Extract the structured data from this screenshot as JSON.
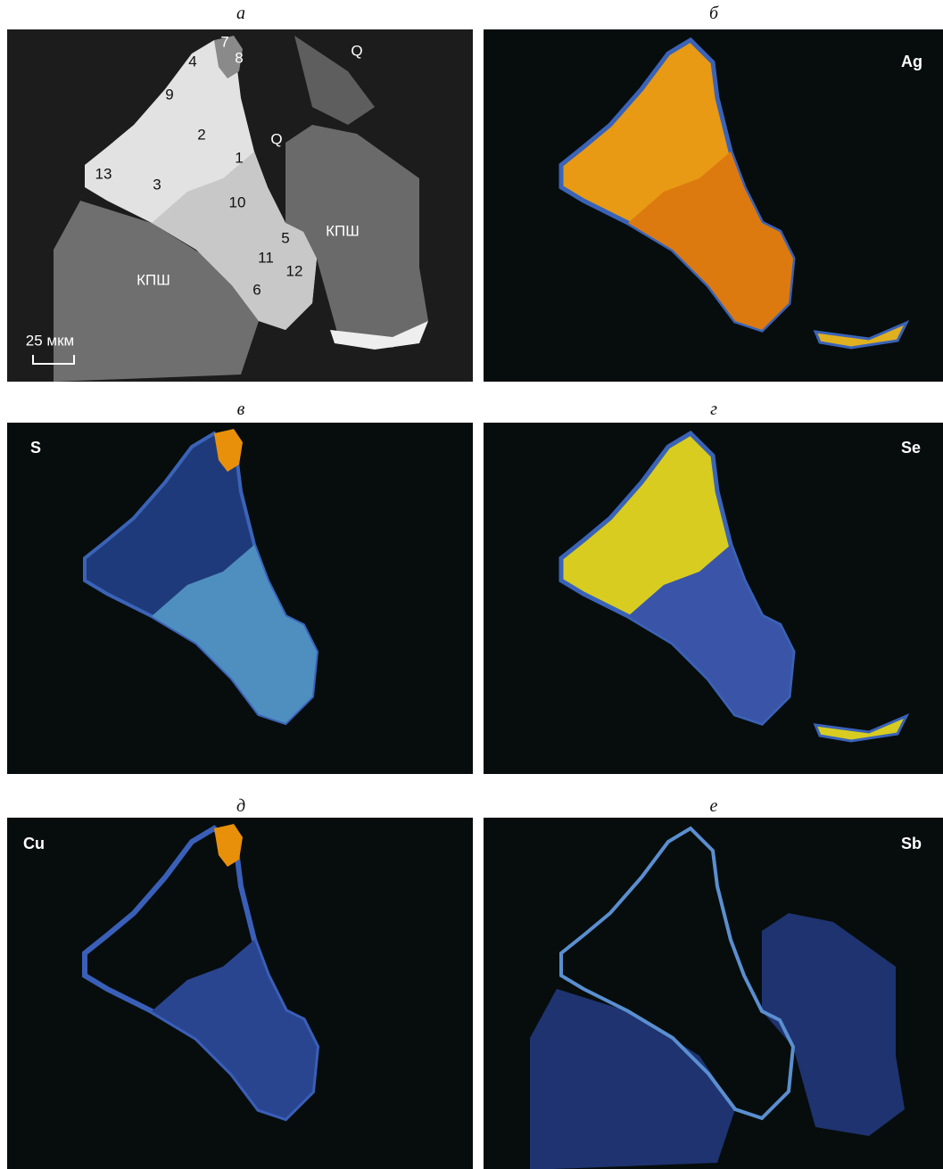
{
  "panels": [
    {
      "caption": "а",
      "annotations": [
        "7",
        "8",
        "Q",
        "4",
        "9",
        "2",
        "Q",
        "1",
        "13",
        "3",
        "10",
        "5",
        "КПШ",
        "11",
        "12",
        "КПШ",
        "6"
      ],
      "scale_bar": "25 мкм"
    },
    {
      "caption": "б",
      "element": "Ag"
    },
    {
      "caption": "в",
      "element": "S"
    },
    {
      "caption": "г",
      "element": "Se"
    },
    {
      "caption": "д",
      "element": "Cu"
    },
    {
      "caption": "е",
      "element": "Sb"
    }
  ]
}
